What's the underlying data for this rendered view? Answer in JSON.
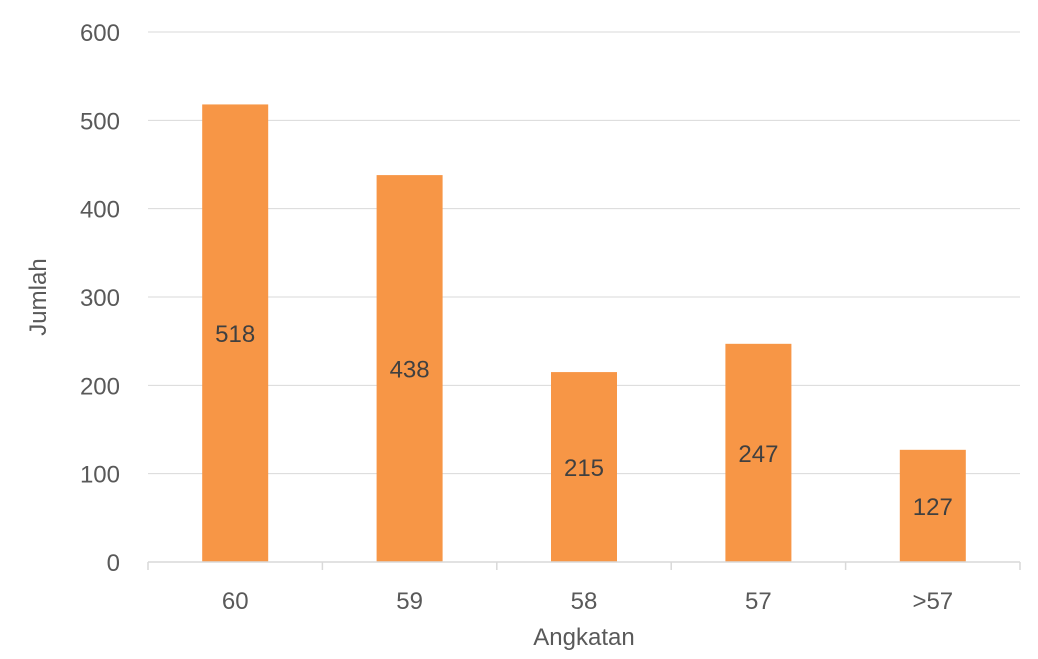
{
  "chart_data": {
    "type": "bar",
    "categories": [
      "60",
      "59",
      "58",
      "57",
      ">57"
    ],
    "values": [
      518,
      438,
      215,
      247,
      127
    ],
    "data_labels": [
      "518",
      "438",
      "215",
      "247",
      "127"
    ],
    "xlabel": "Angkatan",
    "ylabel": "Jumlah",
    "ylim": [
      0,
      600
    ],
    "yticks": [
      0,
      100,
      200,
      300,
      400,
      500,
      600
    ],
    "ytick_labels": [
      "0",
      "100",
      "200",
      "300",
      "400",
      "500",
      "600"
    ],
    "grid": true,
    "legend": "none",
    "colors": {
      "bar": "#f79646",
      "grid": "#d9d9d9",
      "text": "#595959"
    }
  }
}
